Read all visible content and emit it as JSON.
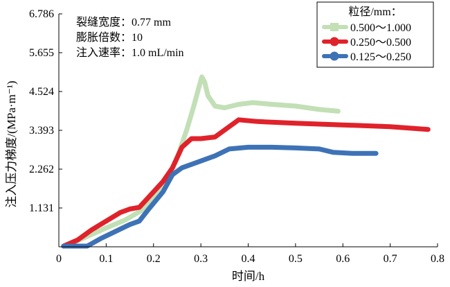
{
  "chart_data": {
    "type": "line",
    "xlabel": "时间/h",
    "ylabel": "注入压力梯度/(MPa·m⁻¹)",
    "xlim": [
      0,
      0.8
    ],
    "ylim": [
      0,
      6.786
    ],
    "x_ticks": [
      "0",
      "0.1",
      "0.2",
      "0.3",
      "0.4",
      "0.5",
      "0.6",
      "0.7",
      "0.8"
    ],
    "y_ticks": [
      "1.131",
      "2.262",
      "3.393",
      "4.524",
      "5.655",
      "6.786"
    ],
    "annotations": [
      "裂缝宽度：0.77 mm",
      "膨胀倍数：10",
      "注入速率：1.0 mL/min"
    ],
    "legend_title": "粒径/mm：",
    "legend_position": "top-right",
    "series": [
      {
        "name": "0.500～1.000",
        "color": "#c2dfb6",
        "marker": "square",
        "points": [
          [
            0.01,
            0.02
          ],
          [
            0.03,
            0.12
          ],
          [
            0.06,
            0.3
          ],
          [
            0.1,
            0.55
          ],
          [
            0.14,
            0.78
          ],
          [
            0.18,
            1.1
          ],
          [
            0.21,
            1.6
          ],
          [
            0.23,
            2.0
          ],
          [
            0.25,
            2.6
          ],
          [
            0.27,
            3.4
          ],
          [
            0.285,
            4.1
          ],
          [
            0.295,
            4.6
          ],
          [
            0.302,
            4.95
          ],
          [
            0.308,
            4.8
          ],
          [
            0.315,
            4.4
          ],
          [
            0.33,
            4.1
          ],
          [
            0.35,
            4.05
          ],
          [
            0.38,
            4.15
          ],
          [
            0.41,
            4.2
          ],
          [
            0.45,
            4.15
          ],
          [
            0.5,
            4.1
          ],
          [
            0.55,
            4.0
          ],
          [
            0.59,
            3.95
          ]
        ]
      },
      {
        "name": "0.250～0.500",
        "color": "#e0222a",
        "marker": "circle",
        "points": [
          [
            0.01,
            0.02
          ],
          [
            0.04,
            0.2
          ],
          [
            0.07,
            0.5
          ],
          [
            0.1,
            0.75
          ],
          [
            0.13,
            1.0
          ],
          [
            0.15,
            1.1
          ],
          [
            0.17,
            1.15
          ],
          [
            0.19,
            1.45
          ],
          [
            0.22,
            1.9
          ],
          [
            0.24,
            2.3
          ],
          [
            0.26,
            2.9
          ],
          [
            0.28,
            3.15
          ],
          [
            0.3,
            3.15
          ],
          [
            0.33,
            3.2
          ],
          [
            0.36,
            3.5
          ],
          [
            0.38,
            3.7
          ],
          [
            0.42,
            3.65
          ],
          [
            0.5,
            3.6
          ],
          [
            0.6,
            3.55
          ],
          [
            0.7,
            3.5
          ],
          [
            0.78,
            3.42
          ]
        ]
      },
      {
        "name": "0.125～0.250",
        "color": "#3e72b6",
        "marker": "circle",
        "points": [
          [
            0.01,
            0.02
          ],
          [
            0.06,
            0.02
          ],
          [
            0.09,
            0.25
          ],
          [
            0.12,
            0.45
          ],
          [
            0.15,
            0.65
          ],
          [
            0.17,
            0.75
          ],
          [
            0.19,
            1.1
          ],
          [
            0.22,
            1.6
          ],
          [
            0.24,
            2.1
          ],
          [
            0.26,
            2.3
          ],
          [
            0.29,
            2.45
          ],
          [
            0.33,
            2.65
          ],
          [
            0.36,
            2.85
          ],
          [
            0.4,
            2.9
          ],
          [
            0.45,
            2.9
          ],
          [
            0.5,
            2.88
          ],
          [
            0.55,
            2.85
          ],
          [
            0.58,
            2.75
          ],
          [
            0.62,
            2.72
          ],
          [
            0.67,
            2.72
          ]
        ]
      }
    ]
  }
}
